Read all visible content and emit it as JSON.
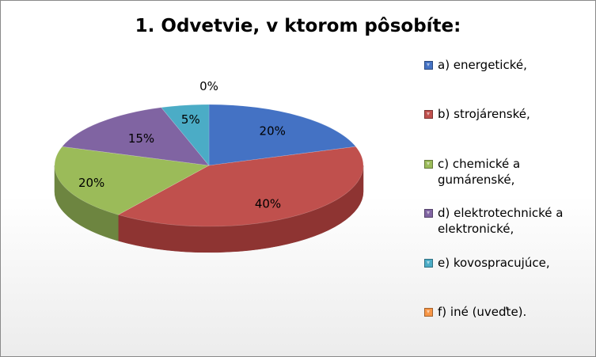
{
  "chart_data": {
    "type": "pie",
    "title": "1. Odvetvie, v ktorom pôsobíte:",
    "categories": [
      "a) energetické,",
      "b) strojárenské,",
      "c) chemické a gumárenské,",
      "d) elektrotechnické a elektronické,",
      "e) kovospracujúce,",
      "f) iné (uveďte)."
    ],
    "legend_lines": [
      [
        "a) energetické,"
      ],
      [
        "b) strojárenské,"
      ],
      [
        "c) chemické a",
        "gumárenské,"
      ],
      [
        "d) elektrotechnické a",
        "elektronické,"
      ],
      [
        "e) kovospracujúce,"
      ],
      [
        "f) iné (uveďte)."
      ]
    ],
    "values": [
      20,
      40,
      20,
      15,
      5,
      0
    ],
    "data_labels": [
      "20%",
      "40%",
      "20%",
      "15%",
      "5%",
      "0%"
    ],
    "colors": [
      "#4472C4",
      "#C0504D",
      "#9BBB59",
      "#8064A2",
      "#4BACC6",
      "#F79646"
    ],
    "side_colors": [
      "#2E4F8A",
      "#8E3432",
      "#6D8540",
      "#5A4575",
      "#33798C",
      "#B06A2E"
    ],
    "style": "3d",
    "legend_position": "right"
  }
}
